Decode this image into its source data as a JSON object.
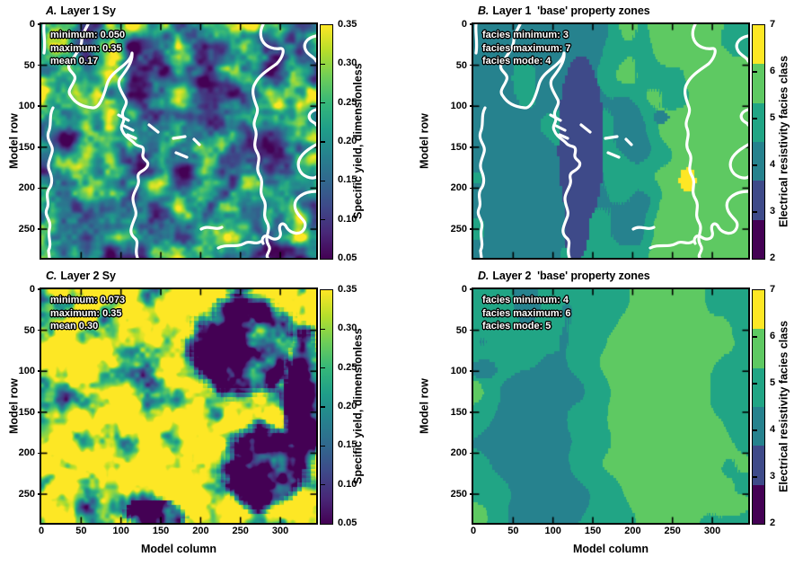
{
  "figure": {
    "description": "Four-panel heatmap figure comparing specific yield and base property zones for model layers 1 and 2",
    "xlabel": "Model column",
    "ylabel": "Model row"
  },
  "colors": {
    "viridis_stops": [
      "#440154",
      "#482878",
      "#3e4989",
      "#31688e",
      "#26828e",
      "#1f9e89",
      "#35b779",
      "#6ece58",
      "#b5de2b",
      "#fde725"
    ],
    "facies_colors": [
      "#440154",
      "#3e4a89",
      "#26828e",
      "#21a585",
      "#5ec962",
      "#fde725"
    ],
    "overlay_line": "#ffffff",
    "text": "#000000",
    "background": "#ffffff"
  },
  "chart_data": [
    {
      "type": "heatmap",
      "panel_letter": "A.",
      "title": "Layer 1 Sy",
      "xlabel": "Model column",
      "ylabel": "Model row",
      "x_range": [
        0,
        345
      ],
      "y_range": [
        0,
        285
      ],
      "x_ticks": [
        "0",
        "50",
        "100",
        "150",
        "200",
        "250",
        "300"
      ],
      "y_ticks": [
        "0",
        "50",
        "100",
        "150",
        "200",
        "250"
      ],
      "annotation": [
        "minimum: 0.050",
        "maximum: 0.35",
        "mean 0.17"
      ],
      "stats": {
        "minimum": 0.05,
        "maximum": 0.35,
        "mean": 0.17
      },
      "colorbar": {
        "type": "continuous",
        "label": "Specific yield, dimensionless",
        "min": 0.05,
        "max": 0.35,
        "tick_labels": [
          "0.35",
          "0.30",
          "0.25",
          "0.20",
          "0.15",
          "0.10",
          "0.05"
        ],
        "colormap": "viridis"
      },
      "overlay": "white boundary contour lines"
    },
    {
      "type": "heatmap",
      "panel_letter": "B.",
      "title": "Layer 1  'base' property zones",
      "xlabel": "Model column",
      "ylabel": "Model row",
      "x_range": [
        0,
        345
      ],
      "y_range": [
        0,
        285
      ],
      "x_ticks": [
        "0",
        "50",
        "100",
        "150",
        "200",
        "250",
        "300"
      ],
      "y_ticks": [
        "0",
        "50",
        "100",
        "150",
        "200",
        "250"
      ],
      "annotation": [
        "facies minimum: 3",
        "facies maximum: 7",
        "facies mode: 4"
      ],
      "stats": {
        "facies_minimum": 3,
        "facies_maximum": 7,
        "facies_mode": 4
      },
      "colorbar": {
        "type": "discrete",
        "label": "Electrical resistivity facies class",
        "min": 2,
        "max": 7,
        "tick_labels": [
          "7",
          "6",
          "5",
          "4",
          "3",
          "2"
        ],
        "classes": [
          2,
          3,
          4,
          5,
          6,
          7
        ],
        "colormap": "viridis"
      },
      "overlay": "white boundary contour lines"
    },
    {
      "type": "heatmap",
      "panel_letter": "C.",
      "title": "Layer 2 Sy",
      "xlabel": "Model column",
      "ylabel": "Model row",
      "x_range": [
        0,
        345
      ],
      "y_range": [
        0,
        285
      ],
      "x_ticks": [
        "0",
        "50",
        "100",
        "150",
        "200",
        "250",
        "300"
      ],
      "y_ticks": [
        "0",
        "50",
        "100",
        "150",
        "200",
        "250"
      ],
      "annotation": [
        "minimum: 0.073",
        "maximum: 0.35",
        "mean 0.30"
      ],
      "stats": {
        "minimum": 0.073,
        "maximum": 0.35,
        "mean": 0.3
      },
      "colorbar": {
        "type": "continuous",
        "label": "Specific yield, dimensionless",
        "min": 0.05,
        "max": 0.35,
        "tick_labels": [
          "0.35",
          "0.30",
          "0.25",
          "0.20",
          "0.15",
          "0.10",
          "0.05"
        ],
        "colormap": "viridis"
      },
      "overlay": null
    },
    {
      "type": "heatmap",
      "panel_letter": "D.",
      "title": "Layer 2  'base' property zones",
      "xlabel": "Model column",
      "ylabel": "Model row",
      "x_range": [
        0,
        345
      ],
      "y_range": [
        0,
        285
      ],
      "x_ticks": [
        "0",
        "50",
        "100",
        "150",
        "200",
        "250",
        "300"
      ],
      "y_ticks": [
        "0",
        "50",
        "100",
        "150",
        "200",
        "250"
      ],
      "annotation": [
        "facies minimum: 4",
        "facies maximum: 6",
        "facies mode: 5"
      ],
      "stats": {
        "facies_minimum": 4,
        "facies_maximum": 6,
        "facies_mode": 5
      },
      "colorbar": {
        "type": "discrete",
        "label": "Electrical resistivity facies class",
        "min": 2,
        "max": 7,
        "tick_labels": [
          "7",
          "6",
          "5",
          "4",
          "3",
          "2"
        ],
        "classes": [
          2,
          3,
          4,
          5,
          6,
          7
        ],
        "colormap": "viridis"
      },
      "overlay": null
    }
  ]
}
